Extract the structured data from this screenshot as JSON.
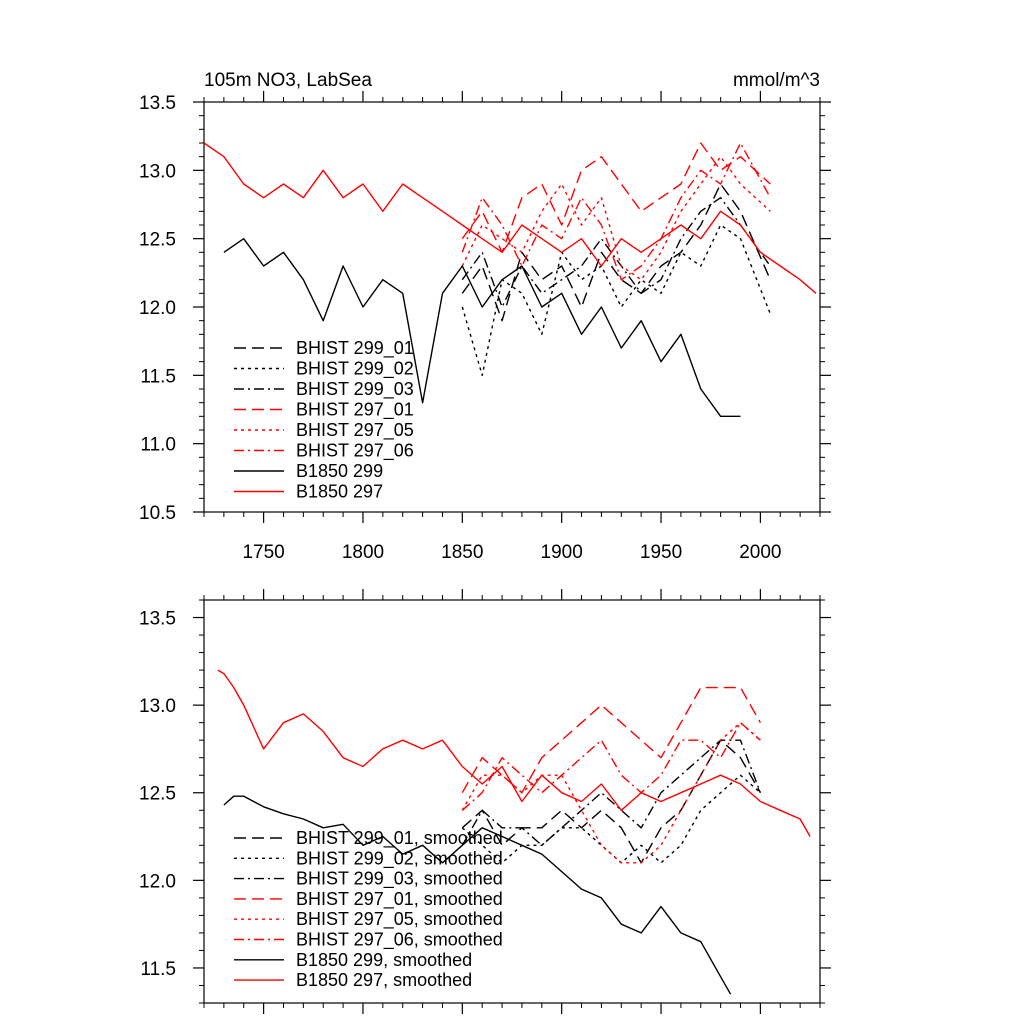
{
  "chart_data": [
    {
      "type": "line",
      "title": "105m NO3, LabSea",
      "units": "mmol/m^3",
      "xlim": [
        1720,
        2030
      ],
      "ylim": [
        10.5,
        13.5
      ],
      "xticks": [
        1750,
        1800,
        1850,
        1900,
        1950,
        2000
      ],
      "yticks": [
        10.5,
        11.0,
        11.5,
        12.0,
        12.5,
        13.0,
        13.5
      ],
      "xticklabels": [
        "1750",
        "1800",
        "1850",
        "1900",
        "1950",
        "2000"
      ],
      "yticklabels": [
        "10.5",
        "11.0",
        "11.5",
        "12.0",
        "12.5",
        "13.0",
        "13.5"
      ],
      "legend_position": "lower-left",
      "series": [
        {
          "name": "BHIST 299_01",
          "color": "#000000",
          "dash": "dashed",
          "x": [
            1850,
            1860,
            1870,
            1880,
            1890,
            1900,
            1910,
            1920,
            1930,
            1940,
            1950,
            1960,
            1970,
            1980,
            1990,
            2005
          ],
          "y": [
            12.1,
            12.3,
            11.9,
            12.4,
            12.2,
            12.3,
            12.0,
            12.4,
            12.2,
            12.1,
            12.3,
            12.4,
            12.6,
            12.9,
            12.7,
            12.2
          ]
        },
        {
          "name": "BHIST 299_02",
          "color": "#000000",
          "dash": "dotted",
          "x": [
            1850,
            1860,
            1870,
            1880,
            1890,
            1900,
            1910,
            1920,
            1930,
            1940,
            1950,
            1960,
            1970,
            1980,
            1990,
            2005
          ],
          "y": [
            12.0,
            11.5,
            12.2,
            12.1,
            11.8,
            12.4,
            12.2,
            12.3,
            12.0,
            12.2,
            12.1,
            12.4,
            12.3,
            12.6,
            12.5,
            11.95
          ]
        },
        {
          "name": "BHIST 299_03",
          "color": "#000000",
          "dash": "dashdot",
          "x": [
            1850,
            1860,
            1870,
            1880,
            1890,
            1900,
            1910,
            1920,
            1930,
            1940,
            1950,
            1960,
            1970,
            1980,
            1990,
            2005
          ],
          "y": [
            12.2,
            12.4,
            12.0,
            12.3,
            12.1,
            12.2,
            12.3,
            12.5,
            12.3,
            12.1,
            12.2,
            12.5,
            12.7,
            12.8,
            12.6,
            12.3
          ]
        },
        {
          "name": "BHIST 297_01",
          "color": "#ff0000",
          "dash": "dashed",
          "x": [
            1850,
            1860,
            1870,
            1880,
            1890,
            1900,
            1910,
            1920,
            1930,
            1940,
            1950,
            1960,
            1970,
            1980,
            1990,
            2005
          ],
          "y": [
            12.5,
            12.7,
            12.4,
            12.8,
            12.9,
            12.6,
            13.0,
            13.1,
            12.9,
            12.7,
            12.8,
            12.9,
            13.2,
            13.0,
            13.1,
            12.9
          ]
        },
        {
          "name": "BHIST 297_05",
          "color": "#ff0000",
          "dash": "dotted",
          "x": [
            1850,
            1860,
            1870,
            1880,
            1890,
            1900,
            1910,
            1920,
            1930,
            1940,
            1950,
            1960,
            1970,
            1980,
            1990,
            2005
          ],
          "y": [
            12.3,
            12.6,
            12.5,
            12.4,
            12.7,
            12.9,
            12.6,
            12.8,
            12.3,
            12.2,
            12.4,
            12.7,
            12.9,
            13.1,
            12.9,
            12.7
          ]
        },
        {
          "name": "BHIST 297_06",
          "color": "#ff0000",
          "dash": "dashdot",
          "x": [
            1850,
            1860,
            1870,
            1880,
            1890,
            1900,
            1910,
            1920,
            1930,
            1940,
            1950,
            1960,
            1970,
            1980,
            1990,
            2005
          ],
          "y": [
            12.4,
            12.8,
            12.6,
            12.3,
            12.6,
            12.5,
            12.8,
            12.6,
            12.2,
            12.3,
            12.5,
            12.8,
            13.0,
            12.9,
            13.2,
            12.8
          ]
        },
        {
          "name": "B1850 299",
          "color": "#000000",
          "dash": "solid",
          "x": [
            1730,
            1740,
            1750,
            1760,
            1770,
            1780,
            1790,
            1800,
            1810,
            1820,
            1830,
            1840,
            1850,
            1860,
            1870,
            1880,
            1890,
            1900,
            1910,
            1920,
            1930,
            1940,
            1950,
            1960,
            1970,
            1980,
            1990
          ],
          "y": [
            12.4,
            12.5,
            12.3,
            12.4,
            12.2,
            11.9,
            12.3,
            12.0,
            12.2,
            12.1,
            11.3,
            12.1,
            12.3,
            12.0,
            12.2,
            12.3,
            12.0,
            12.1,
            11.8,
            12.0,
            11.7,
            11.9,
            11.6,
            11.8,
            11.4,
            11.2,
            11.2
          ]
        },
        {
          "name": "B1850 297",
          "color": "#ff0000",
          "dash": "solid",
          "x": [
            1720,
            1730,
            1740,
            1750,
            1760,
            1770,
            1780,
            1790,
            1800,
            1810,
            1820,
            1830,
            1840,
            1850,
            1860,
            1870,
            1880,
            1890,
            1900,
            1910,
            1920,
            1930,
            1940,
            1950,
            1960,
            1970,
            1980,
            1990,
            2000,
            2010,
            2020,
            2028
          ],
          "y": [
            13.2,
            13.1,
            12.9,
            12.8,
            12.9,
            12.8,
            13.0,
            12.8,
            12.9,
            12.7,
            12.9,
            12.8,
            12.7,
            12.6,
            12.5,
            12.4,
            12.6,
            12.5,
            12.4,
            12.5,
            12.3,
            12.5,
            12.4,
            12.5,
            12.6,
            12.5,
            12.7,
            12.6,
            12.4,
            12.3,
            12.2,
            12.1
          ]
        }
      ]
    },
    {
      "type": "line",
      "title": "",
      "xlim": [
        1720,
        2030
      ],
      "ylim": [
        11.3,
        13.6
      ],
      "xticks": [
        1750,
        1800,
        1850,
        1900,
        1950,
        2000
      ],
      "yticks": [
        11.5,
        12.0,
        12.5,
        13.0,
        13.5
      ],
      "yticklabels": [
        "11.5",
        "12.0",
        "12.5",
        "13.0",
        "13.5"
      ],
      "legend_position": "lower-left",
      "series": [
        {
          "name": "BHIST 299_01, smoothed",
          "color": "#000000",
          "dash": "dashed",
          "x": [
            1850,
            1860,
            1870,
            1880,
            1890,
            1900,
            1910,
            1920,
            1930,
            1940,
            1950,
            1960,
            1970,
            1980,
            1990,
            2000
          ],
          "y": [
            12.3,
            12.4,
            12.2,
            12.3,
            12.3,
            12.4,
            12.3,
            12.4,
            12.3,
            12.1,
            12.3,
            12.4,
            12.6,
            12.8,
            12.7,
            12.5
          ]
        },
        {
          "name": "BHIST 299_02, smoothed",
          "color": "#000000",
          "dash": "dotted",
          "x": [
            1850,
            1860,
            1870,
            1880,
            1890,
            1900,
            1910,
            1920,
            1930,
            1940,
            1950,
            1960,
            1970,
            1980,
            1990,
            2000
          ],
          "y": [
            12.3,
            12.2,
            12.1,
            12.2,
            12.2,
            12.3,
            12.3,
            12.2,
            12.1,
            12.2,
            12.1,
            12.2,
            12.4,
            12.5,
            12.6,
            12.5
          ]
        },
        {
          "name": "BHIST 299_03, smoothed",
          "color": "#000000",
          "dash": "dashdot",
          "x": [
            1850,
            1860,
            1870,
            1880,
            1890,
            1900,
            1910,
            1920,
            1930,
            1940,
            1950,
            1960,
            1970,
            1980,
            1990,
            2000
          ],
          "y": [
            12.2,
            12.4,
            12.3,
            12.3,
            12.2,
            12.3,
            12.4,
            12.5,
            12.4,
            12.3,
            12.5,
            12.6,
            12.7,
            12.8,
            12.8,
            12.5
          ]
        },
        {
          "name": "BHIST 297_01, smoothed",
          "color": "#ff0000",
          "dash": "dashed",
          "x": [
            1850,
            1860,
            1870,
            1880,
            1890,
            1900,
            1910,
            1920,
            1930,
            1940,
            1950,
            1960,
            1970,
            1980,
            1990,
            2000
          ],
          "y": [
            12.5,
            12.7,
            12.6,
            12.5,
            12.7,
            12.8,
            12.9,
            13.0,
            12.9,
            12.8,
            12.7,
            12.9,
            13.1,
            13.1,
            13.1,
            12.9
          ]
        },
        {
          "name": "BHIST 297_05, smoothed",
          "color": "#ff0000",
          "dash": "dotted",
          "x": [
            1850,
            1860,
            1870,
            1880,
            1890,
            1900,
            1910,
            1920,
            1930,
            1940,
            1950,
            1960,
            1970,
            1980,
            1990,
            2000
          ],
          "y": [
            12.4,
            12.6,
            12.6,
            12.5,
            12.6,
            12.6,
            12.4,
            12.2,
            12.1,
            12.1,
            12.2,
            12.4,
            12.6,
            12.8,
            12.9,
            12.8
          ]
        },
        {
          "name": "BHIST 297_06, smoothed",
          "color": "#ff0000",
          "dash": "dashdot",
          "x": [
            1850,
            1860,
            1870,
            1880,
            1890,
            1900,
            1910,
            1920,
            1930,
            1940,
            1950,
            1960,
            1970,
            1980,
            1990,
            2000
          ],
          "y": [
            12.4,
            12.5,
            12.7,
            12.6,
            12.5,
            12.6,
            12.7,
            12.8,
            12.6,
            12.5,
            12.6,
            12.8,
            12.8,
            12.7,
            12.9,
            12.8
          ]
        },
        {
          "name": "B1850 299, smoothed",
          "color": "#000000",
          "dash": "solid",
          "x": [
            1730,
            1735,
            1740,
            1750,
            1760,
            1770,
            1780,
            1790,
            1800,
            1810,
            1820,
            1830,
            1840,
            1850,
            1860,
            1870,
            1880,
            1890,
            1900,
            1910,
            1920,
            1930,
            1940,
            1950,
            1960,
            1970,
            1980,
            1985
          ],
          "y": [
            12.43,
            12.48,
            12.48,
            12.42,
            12.38,
            12.35,
            12.3,
            12.32,
            12.2,
            12.25,
            12.15,
            12.2,
            12.1,
            12.2,
            12.3,
            12.25,
            12.2,
            12.15,
            12.05,
            11.95,
            11.9,
            11.75,
            11.7,
            11.85,
            11.7,
            11.65,
            11.45,
            11.35
          ]
        },
        {
          "name": "B1850 297, smoothed",
          "color": "#ff0000",
          "dash": "solid",
          "x": [
            1727,
            1730,
            1735,
            1740,
            1750,
            1760,
            1770,
            1780,
            1790,
            1800,
            1810,
            1820,
            1830,
            1840,
            1850,
            1860,
            1870,
            1880,
            1890,
            1900,
            1910,
            1920,
            1930,
            1940,
            1950,
            1960,
            1970,
            1980,
            1990,
            2000,
            2010,
            2020,
            2025
          ],
          "y": [
            13.2,
            13.18,
            13.1,
            13.0,
            12.75,
            12.9,
            12.95,
            12.85,
            12.7,
            12.65,
            12.75,
            12.8,
            12.75,
            12.8,
            12.65,
            12.55,
            12.65,
            12.45,
            12.6,
            12.5,
            12.45,
            12.55,
            12.4,
            12.5,
            12.45,
            12.5,
            12.55,
            12.6,
            12.55,
            12.45,
            12.4,
            12.35,
            12.25
          ]
        }
      ]
    }
  ]
}
